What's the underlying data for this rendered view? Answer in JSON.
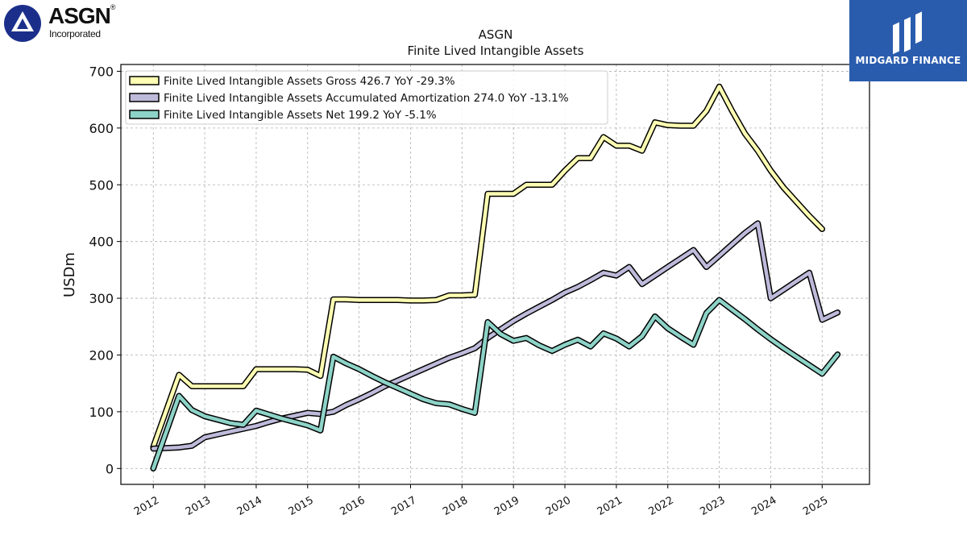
{
  "header": {
    "company": "ASGN",
    "chart_title": "Finite Lived Intangible Assets"
  },
  "logos": {
    "left_name": "ASGN",
    "left_sub": "Incorporated",
    "right_name": "MIDGARD FINANCE"
  },
  "colors": {
    "gross": "#ffffb3",
    "amort": "#bebada",
    "net": "#8dd3c7",
    "outline": "#000000",
    "brand_blue": "#2a5cae"
  },
  "chart_data": {
    "type": "line",
    "title": "ASGN\nFinite Lived Intangible Assets",
    "ylabel": "USDm",
    "xlabel": "",
    "ylim": [
      -28,
      712
    ],
    "xlim": [
      2011.37,
      2025.92
    ],
    "yticks": [
      0,
      100,
      200,
      300,
      400,
      500,
      600,
      700
    ],
    "xticks": [
      "2012",
      "2013",
      "2014",
      "2015",
      "2016",
      "2017",
      "2018",
      "2019",
      "2020",
      "2021",
      "2022",
      "2023",
      "2024",
      "2025"
    ],
    "grid": true,
    "legend_position": "top-left",
    "series": [
      {
        "name": "Finite Lived Intangible Assets Gross  426.7 YoY -29.3%",
        "key": "gross",
        "x": [
          2012.0,
          2012.5,
          2012.75,
          2013.0,
          2013.25,
          2013.5,
          2013.75,
          2014.0,
          2014.25,
          2014.5,
          2014.75,
          2015.0,
          2015.25,
          2015.5,
          2015.75,
          2016.0,
          2016.25,
          2016.5,
          2016.75,
          2017.0,
          2017.25,
          2017.5,
          2017.75,
          2018.0,
          2018.25,
          2018.5,
          2018.75,
          2019.0,
          2019.25,
          2019.5,
          2019.75,
          2020.0,
          2020.25,
          2020.5,
          2020.75,
          2021.0,
          2021.25,
          2021.5,
          2021.75,
          2022.0,
          2022.25,
          2022.5,
          2022.75,
          2023.0,
          2023.25,
          2023.5,
          2023.75,
          2024.0,
          2024.25,
          2024.5,
          2024.75,
          2025.0
        ],
        "values": [
          38,
          165,
          145,
          145,
          145,
          145,
          145,
          175,
          175,
          175,
          175,
          174,
          163,
          298,
          298,
          297,
          297,
          297,
          297,
          296,
          296,
          297,
          305,
          305,
          306,
          484,
          484,
          484,
          500,
          500,
          500,
          525,
          547,
          547,
          584,
          569,
          569,
          560,
          610,
          605,
          604,
          604,
          630,
          673,
          630,
          590,
          560,
          525,
          495,
          470,
          445,
          422
        ]
      },
      {
        "name": "Finite Lived Intangible Assets Accumulated Amortization  274.0 YoY -13.1%",
        "key": "amort",
        "x": [
          2012.0,
          2012.5,
          2012.75,
          2013.0,
          2013.25,
          2013.5,
          2013.75,
          2014.0,
          2014.25,
          2014.5,
          2014.75,
          2015.0,
          2015.25,
          2015.5,
          2015.75,
          2016.0,
          2016.25,
          2016.5,
          2016.75,
          2017.0,
          2017.25,
          2017.5,
          2017.75,
          2018.0,
          2018.25,
          2018.5,
          2018.75,
          2019.0,
          2019.25,
          2019.5,
          2019.75,
          2020.0,
          2020.25,
          2020.5,
          2020.75,
          2021.0,
          2021.25,
          2021.5,
          2021.75,
          2022.0,
          2022.25,
          2022.5,
          2022.75,
          2023.0,
          2023.25,
          2023.5,
          2023.75,
          2024.0,
          2024.25,
          2024.5,
          2024.75,
          2025.0,
          2025.3
        ],
        "values": [
          35,
          37,
          40,
          55,
          60,
          65,
          70,
          75,
          82,
          88,
          93,
          98,
          96,
          100,
          112,
          122,
          133,
          145,
          155,
          165,
          175,
          185,
          195,
          203,
          212,
          230,
          245,
          260,
          273,
          285,
          297,
          310,
          320,
          332,
          345,
          340,
          355,
          325,
          340,
          355,
          370,
          385,
          355,
          375,
          395,
          415,
          432,
          300,
          315,
          330,
          345,
          262,
          275
        ]
      },
      {
        "name": "Finite Lived Intangible Assets Net  199.2 YoY -5.1%",
        "key": "net",
        "x": [
          2012.0,
          2012.5,
          2012.75,
          2013.0,
          2013.25,
          2013.5,
          2013.75,
          2014.0,
          2014.25,
          2014.5,
          2014.75,
          2015.0,
          2015.25,
          2015.5,
          2015.75,
          2016.0,
          2016.25,
          2016.5,
          2016.75,
          2017.0,
          2017.25,
          2017.5,
          2017.75,
          2018.0,
          2018.25,
          2018.5,
          2018.75,
          2019.0,
          2019.25,
          2019.5,
          2019.75,
          2020.0,
          2020.25,
          2020.5,
          2020.75,
          2021.0,
          2021.25,
          2021.5,
          2021.75,
          2022.0,
          2022.25,
          2022.5,
          2022.75,
          2023.0,
          2023.25,
          2023.5,
          2023.75,
          2024.0,
          2024.25,
          2024.5,
          2024.75,
          2025.0,
          2025.3
        ],
        "values": [
          0,
          128,
          103,
          92,
          86,
          80,
          77,
          102,
          95,
          88,
          82,
          76,
          67,
          197,
          185,
          175,
          163,
          152,
          142,
          132,
          122,
          115,
          113,
          105,
          98,
          258,
          237,
          225,
          230,
          217,
          207,
          218,
          227,
          215,
          238,
          229,
          215,
          233,
          268,
          247,
          232,
          218,
          274,
          297,
          280,
          263,
          245,
          228,
          212,
          197,
          182,
          167,
          201
        ]
      }
    ]
  }
}
